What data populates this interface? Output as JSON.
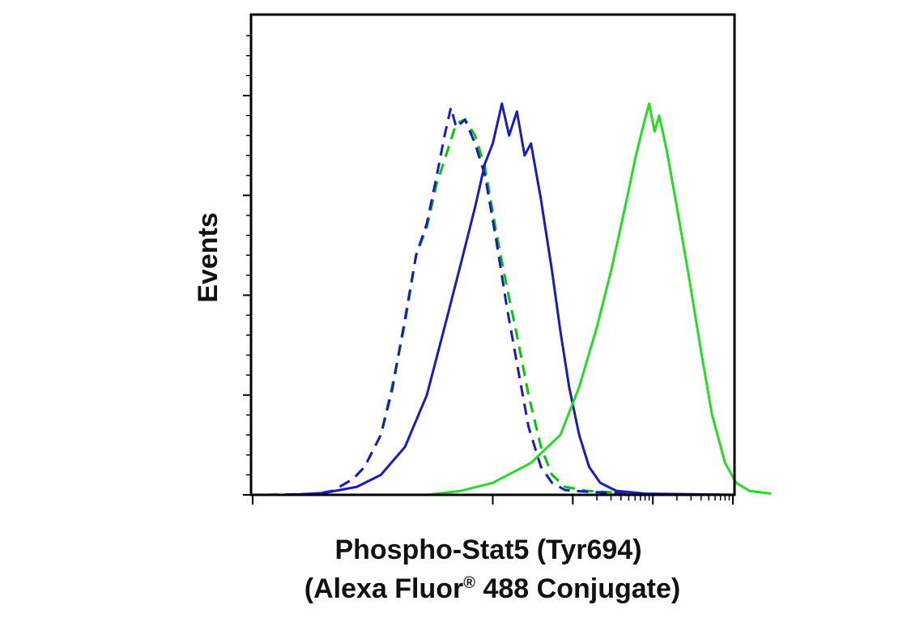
{
  "chart_data": {
    "type": "line",
    "title": "",
    "xlabel_line1": "Phospho-Stat5 (Tyr694)",
    "xlabel_line2_prefix": "(Alexa Fluor",
    "xlabel_line2_super": "®",
    "xlabel_line2_suffix": " 488 Conjugate)",
    "ylabel": "Events",
    "x_scale": "log",
    "xlim": [
      1,
      1000000
    ],
    "ylim": [
      0,
      1
    ],
    "x_major_ticks": [
      1,
      1000,
      10000,
      100000,
      1000000
    ],
    "y_ticks": [
      0,
      0.25,
      0.5,
      0.75,
      1.0
    ],
    "grid": false,
    "legend": "none",
    "series": [
      {
        "color": "#00c800",
        "dash": "dashed",
        "points": [
          [
            1.5,
            0
          ],
          [
            6,
            0.002
          ],
          [
            10,
            0.01
          ],
          [
            18,
            0.04
          ],
          [
            25,
            0.07
          ],
          [
            40,
            0.15
          ],
          [
            55,
            0.27
          ],
          [
            80,
            0.43
          ],
          [
            110,
            0.6
          ],
          [
            150,
            0.67
          ],
          [
            200,
            0.78
          ],
          [
            280,
            0.87
          ],
          [
            350,
            0.93
          ],
          [
            450,
            0.94
          ],
          [
            600,
            0.9
          ],
          [
            800,
            0.82
          ],
          [
            1100,
            0.66
          ],
          [
            1500,
            0.52
          ],
          [
            2000,
            0.4
          ],
          [
            2800,
            0.25
          ],
          [
            4000,
            0.12
          ],
          [
            5500,
            0.05
          ],
          [
            8000,
            0.02
          ],
          [
            15000,
            0.01
          ],
          [
            40000,
            0.005
          ],
          [
            100000,
            0.002
          ],
          [
            1000000,
            0
          ]
        ]
      },
      {
        "color": "#1a1abf",
        "dash": "dashed",
        "points": [
          [
            1.5,
            0
          ],
          [
            6,
            0.002
          ],
          [
            10,
            0.01
          ],
          [
            18,
            0.04
          ],
          [
            25,
            0.07
          ],
          [
            40,
            0.15
          ],
          [
            55,
            0.26
          ],
          [
            80,
            0.44
          ],
          [
            110,
            0.6
          ],
          [
            150,
            0.68
          ],
          [
            200,
            0.8
          ],
          [
            250,
            0.9
          ],
          [
            300,
            0.97
          ],
          [
            350,
            0.92
          ],
          [
            450,
            0.94
          ],
          [
            600,
            0.88
          ],
          [
            800,
            0.8
          ],
          [
            1100,
            0.64
          ],
          [
            1500,
            0.47
          ],
          [
            2000,
            0.33
          ],
          [
            2800,
            0.17
          ],
          [
            4000,
            0.07
          ],
          [
            5500,
            0.03
          ],
          [
            8000,
            0.012
          ],
          [
            15000,
            0.008
          ],
          [
            40000,
            0.004
          ],
          [
            100000,
            0.002
          ],
          [
            1000000,
            0
          ]
        ]
      },
      {
        "color": "#1a1abf",
        "dash": "solid",
        "points": [
          [
            3,
            0
          ],
          [
            8,
            0.005
          ],
          [
            20,
            0.02
          ],
          [
            40,
            0.05
          ],
          [
            80,
            0.12
          ],
          [
            150,
            0.25
          ],
          [
            250,
            0.42
          ],
          [
            400,
            0.58
          ],
          [
            600,
            0.72
          ],
          [
            800,
            0.83
          ],
          [
            1000,
            0.88
          ],
          [
            1300,
            0.98
          ],
          [
            1600,
            0.9
          ],
          [
            2000,
            0.96
          ],
          [
            2500,
            0.85
          ],
          [
            3000,
            0.88
          ],
          [
            4000,
            0.74
          ],
          [
            5500,
            0.56
          ],
          [
            7000,
            0.41
          ],
          [
            9000,
            0.27
          ],
          [
            12000,
            0.15
          ],
          [
            16000,
            0.07
          ],
          [
            22000,
            0.03
          ],
          [
            35000,
            0.01
          ],
          [
            80000,
            0.003
          ],
          [
            1000000,
            0
          ]
        ]
      },
      {
        "color": "#22dd22",
        "dash": "solid",
        "points": [
          [
            150,
            0
          ],
          [
            400,
            0.01
          ],
          [
            1000,
            0.03
          ],
          [
            3000,
            0.08
          ],
          [
            7000,
            0.15
          ],
          [
            12000,
            0.27
          ],
          [
            20000,
            0.42
          ],
          [
            30000,
            0.56
          ],
          [
            45000,
            0.72
          ],
          [
            60000,
            0.84
          ],
          [
            75000,
            0.92
          ],
          [
            90000,
            0.98
          ],
          [
            105000,
            0.91
          ],
          [
            120000,
            0.95
          ],
          [
            150000,
            0.86
          ],
          [
            200000,
            0.72
          ],
          [
            280000,
            0.55
          ],
          [
            400000,
            0.36
          ],
          [
            550000,
            0.2
          ],
          [
            800000,
            0.08
          ],
          [
            1100000,
            0.03
          ],
          [
            1600000,
            0.01
          ],
          [
            3000000,
            0.003
          ],
          [
            1000000,
            0
          ]
        ]
      }
    ]
  }
}
